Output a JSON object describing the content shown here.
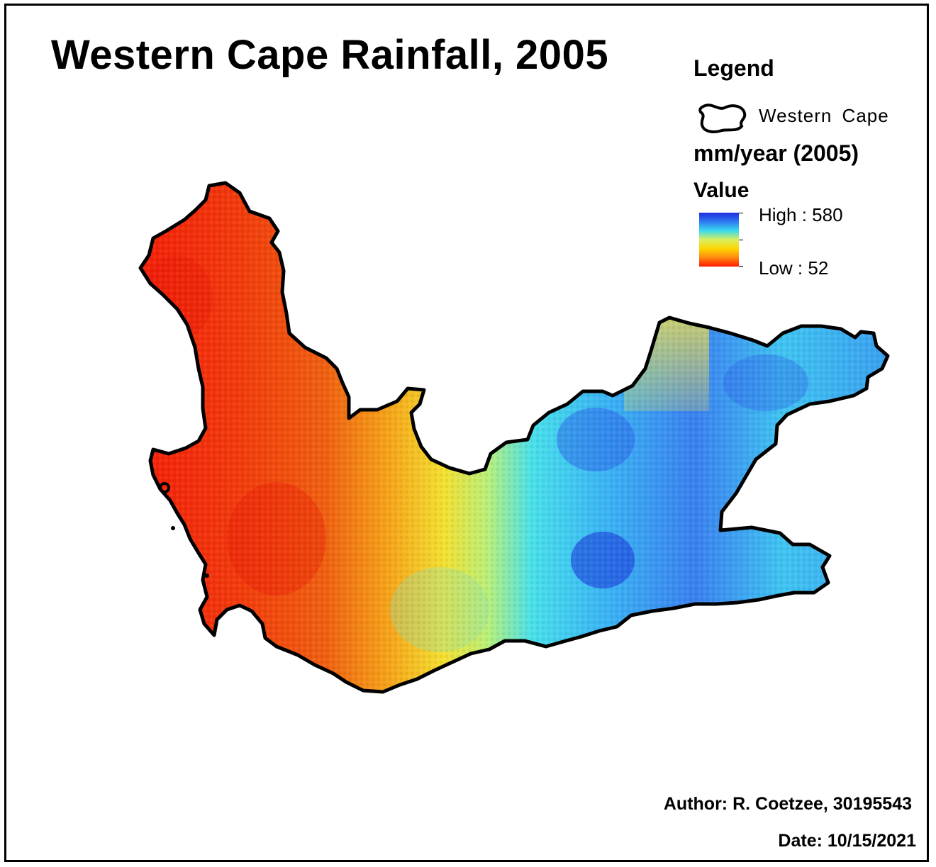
{
  "map": {
    "title": "Western Cape Rainfall, 2005"
  },
  "legend": {
    "title": "Legend",
    "layer_label": "Western  Cape",
    "field_label": "mm/year (2005)",
    "value_heading": "Value",
    "high_label": "High : 580",
    "low_label": "Low : 52",
    "high_value": 580,
    "low_value": 52,
    "ramp_colors": [
      "#1f2be0",
      "#2f7cf0",
      "#38d8f0",
      "#d8f060",
      "#ffd400",
      "#ff8a10",
      "#ff1a00"
    ]
  },
  "credits": {
    "author": "Author: R. Coetzee, 30195543",
    "date": "Date: 10/15/2021"
  }
}
